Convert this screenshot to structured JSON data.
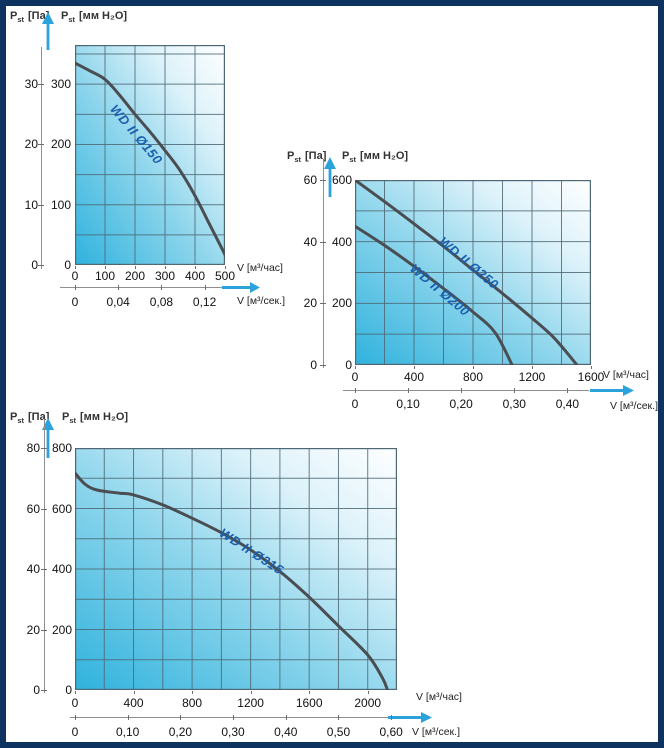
{
  "page": {
    "background": "#ffffff",
    "border_color": "#0e3360"
  },
  "labels": {
    "pressure_symbol": "P",
    "pressure_subscript": "st",
    "pressure_unit_pa": "[Па]",
    "pressure_unit_mm": "[мм H₂O]",
    "flow_label_hour": "V [м³/час]",
    "flow_label_sec": "V [м³/сек.]"
  },
  "colors": {
    "arrow_blue": "#2aa3dc",
    "curve_gray": "#4a4e53",
    "curve_label_blue": "#1b5fad",
    "grid": "#4e6875",
    "gradient_cyan": "#2fb2dd",
    "gradient_white": "#ffffff",
    "frame_navy": "#0e3360"
  },
  "chart_data": [
    {
      "type": "line",
      "title": "",
      "xlabel_hour": "V [м³/час]",
      "xlabel_sec": "V [м³/сек.]",
      "ylabel_left": "Pst [Па]",
      "ylabel_right": "Pst [мм H₂O]",
      "xlim": [
        0,
        500
      ],
      "ylim": [
        0,
        365
      ],
      "x_grid_step": 100,
      "y_grid_step": 50,
      "x_hour_ticks": [
        "0",
        "100",
        "200",
        "300",
        "400",
        "500"
      ],
      "x_sec_ticks": [
        {
          "label": "0",
          "value": 0
        },
        {
          "label": "0,04",
          "value": 0.04
        },
        {
          "label": "0,08",
          "value": 0.08
        },
        {
          "label": "0,12",
          "value": 0.12
        }
      ],
      "y_ticks": [
        {
          "value": 0,
          "inner": "0",
          "outer": "0"
        },
        {
          "value": 100,
          "inner": "100",
          "outer": "10"
        },
        {
          "value": 200,
          "inner": "200",
          "outer": "20"
        },
        {
          "value": 300,
          "inner": "300",
          "outer": "30"
        }
      ],
      "series": [
        {
          "name": "WD II Ø150",
          "points": [
            [
              0,
              335
            ],
            [
              50,
              322
            ],
            [
              100,
              308
            ],
            [
              150,
              281
            ],
            [
              200,
              250
            ],
            [
              250,
              221
            ],
            [
              300,
              190
            ],
            [
              350,
              157
            ],
            [
              400,
              115
            ],
            [
              450,
              66
            ],
            [
              500,
              17
            ],
            [
              512,
              0
            ]
          ]
        }
      ]
    },
    {
      "type": "line",
      "title": "",
      "xlabel_hour": "V [м³/час]",
      "xlabel_sec": "V [м³/сек.]",
      "ylabel_left": "Pst [Па]",
      "ylabel_right": "Pst [мм H₂O]",
      "xlim": [
        0,
        1600
      ],
      "ylim": [
        0,
        600
      ],
      "x_grid_step": 200,
      "y_grid_step": 100,
      "x_hour_ticks": [
        "0",
        "400",
        "800",
        "1200",
        "1600"
      ],
      "x_sec_ticks": [
        {
          "label": "0",
          "value": 0
        },
        {
          "label": "0,10",
          "value": 0.1
        },
        {
          "label": "0,20",
          "value": 0.2
        },
        {
          "label": "0,30",
          "value": 0.3
        },
        {
          "label": "0,40",
          "value": 0.4
        }
      ],
      "y_ticks": [
        {
          "value": 0,
          "inner": "0",
          "outer": "0"
        },
        {
          "value": 200,
          "inner": "200",
          "outer": "20"
        },
        {
          "value": 400,
          "inner": "400",
          "outer": "40"
        },
        {
          "value": 600,
          "inner": "600",
          "outer": "60"
        }
      ],
      "series": [
        {
          "name": "WD II Ø250",
          "points": [
            [
              0,
              600
            ],
            [
              200,
              530
            ],
            [
              400,
              458
            ],
            [
              600,
              385
            ],
            [
              800,
              308
            ],
            [
              1000,
              232
            ],
            [
              1200,
              152
            ],
            [
              1350,
              88
            ],
            [
              1505,
              0
            ]
          ]
        },
        {
          "name": "WD II Ø200",
          "points": [
            [
              0,
              450
            ],
            [
              200,
              388
            ],
            [
              400,
              320
            ],
            [
              600,
              248
            ],
            [
              800,
              172
            ],
            [
              950,
              105
            ],
            [
              1065,
              0
            ]
          ]
        }
      ]
    },
    {
      "type": "line",
      "title": "",
      "xlabel_hour": "V [м³/час]",
      "xlabel_sec": "V [м³/сек.]",
      "ylabel_left": "Pst [Па]",
      "ylabel_right": "Pst [мм H₂O]",
      "xlim": [
        0,
        2200
      ],
      "ylim": [
        0,
        800
      ],
      "x_grid_step": 200,
      "y_grid_step": 100,
      "x_hour_ticks": [
        "0",
        "400",
        "800",
        "1200",
        "1600",
        "2000"
      ],
      "x_sec_ticks": [
        {
          "label": "0",
          "value": 0
        },
        {
          "label": "0,10",
          "value": 0.1
        },
        {
          "label": "0,20",
          "value": 0.2
        },
        {
          "label": "0,30",
          "value": 0.3
        },
        {
          "label": "0,40",
          "value": 0.4
        },
        {
          "label": "0,50",
          "value": 0.5
        },
        {
          "label": "0,60",
          "value": 0.6
        }
      ],
      "y_ticks": [
        {
          "value": 0,
          "inner": "0",
          "outer": "0"
        },
        {
          "value": 200,
          "inner": "200",
          "outer": "20"
        },
        {
          "value": 400,
          "inner": "400",
          "outer": "40"
        },
        {
          "value": 600,
          "inner": "600",
          "outer": "60"
        },
        {
          "value": 800,
          "inner": "800",
          "outer": "80"
        }
      ],
      "series": [
        {
          "name": "WD II Ø315",
          "points": [
            [
              0,
              717
            ],
            [
              70,
              680
            ],
            [
              150,
              661
            ],
            [
              300,
              651
            ],
            [
              400,
              645
            ],
            [
              600,
              612
            ],
            [
              800,
              568
            ],
            [
              1000,
              520
            ],
            [
              1200,
              463
            ],
            [
              1400,
              392
            ],
            [
              1600,
              307
            ],
            [
              1800,
              212
            ],
            [
              2000,
              116
            ],
            [
              2100,
              40
            ],
            [
              2135,
              0
            ]
          ]
        }
      ]
    }
  ]
}
